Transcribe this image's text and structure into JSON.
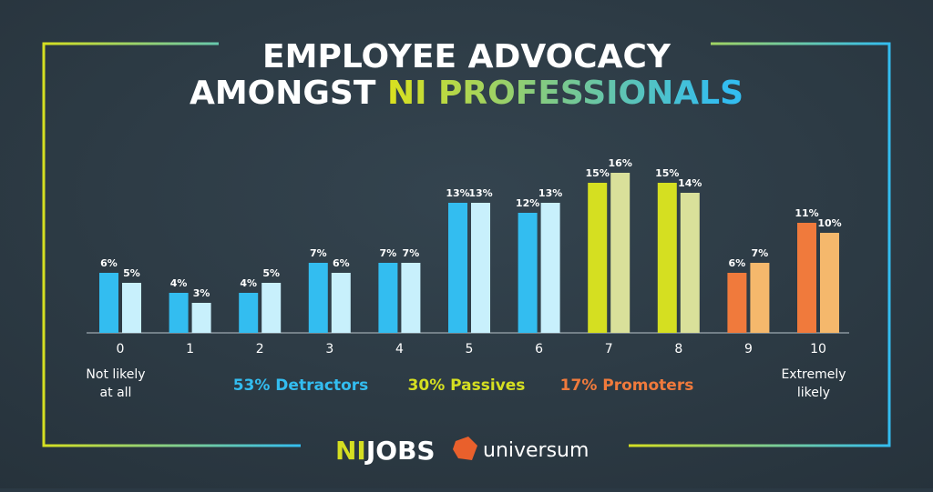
{
  "chart_data": {
    "type": "bar",
    "title": {
      "line1": "EMPLOYEE ADVOCACY",
      "line2": "AMONGST",
      "highlight": "NI PROFESSIONALS"
    },
    "categories": [
      "0",
      "1",
      "2",
      "3",
      "4",
      "5",
      "6",
      "7",
      "8",
      "9",
      "10"
    ],
    "series": [
      {
        "values": [
          6,
          4,
          4,
          7,
          7,
          13,
          12,
          15,
          15,
          6,
          11
        ],
        "value_labels": [
          "6%",
          "4%",
          "4%",
          "7%",
          "7%",
          "13%",
          "12%",
          "15%",
          "15%",
          "6%",
          "11%"
        ],
        "colors": [
          "#33bdf0",
          "#33bdf0",
          "#33bdf0",
          "#33bdf0",
          "#33bdf0",
          "#33bdf0",
          "#33bdf0",
          "#d5df21",
          "#d5df21",
          "#f07a3c",
          "#f07a3c"
        ]
      },
      {
        "values": [
          5,
          3,
          5,
          6,
          7,
          13,
          13,
          16,
          14,
          7,
          10
        ],
        "value_labels": [
          "5%",
          "3%",
          "5%",
          "6%",
          "7%",
          "13%",
          "13%",
          "16%",
          "14%",
          "7%",
          "10%"
        ],
        "colors": [
          "#c8f0fc",
          "#c8f0fc",
          "#c8f0fc",
          "#c8f0fc",
          "#c8f0fc",
          "#c8f0fc",
          "#c8f0fc",
          "#d9e09a",
          "#d9e09a",
          "#f5b86c",
          "#f5b86c"
        ]
      }
    ],
    "scale_low": [
      "Not likely",
      "at all"
    ],
    "scale_high": [
      "Extremely",
      "likely"
    ],
    "groups": [
      {
        "label": "53% Detractors",
        "color": "#33bdf0"
      },
      {
        "label": "30% Passives",
        "color": "#d5df21"
      },
      {
        "label": "17% Promoters",
        "color": "#f07a3c"
      }
    ]
  },
  "logos": {
    "nijobs": [
      "NI",
      "JOBS"
    ],
    "universum": "universum"
  }
}
